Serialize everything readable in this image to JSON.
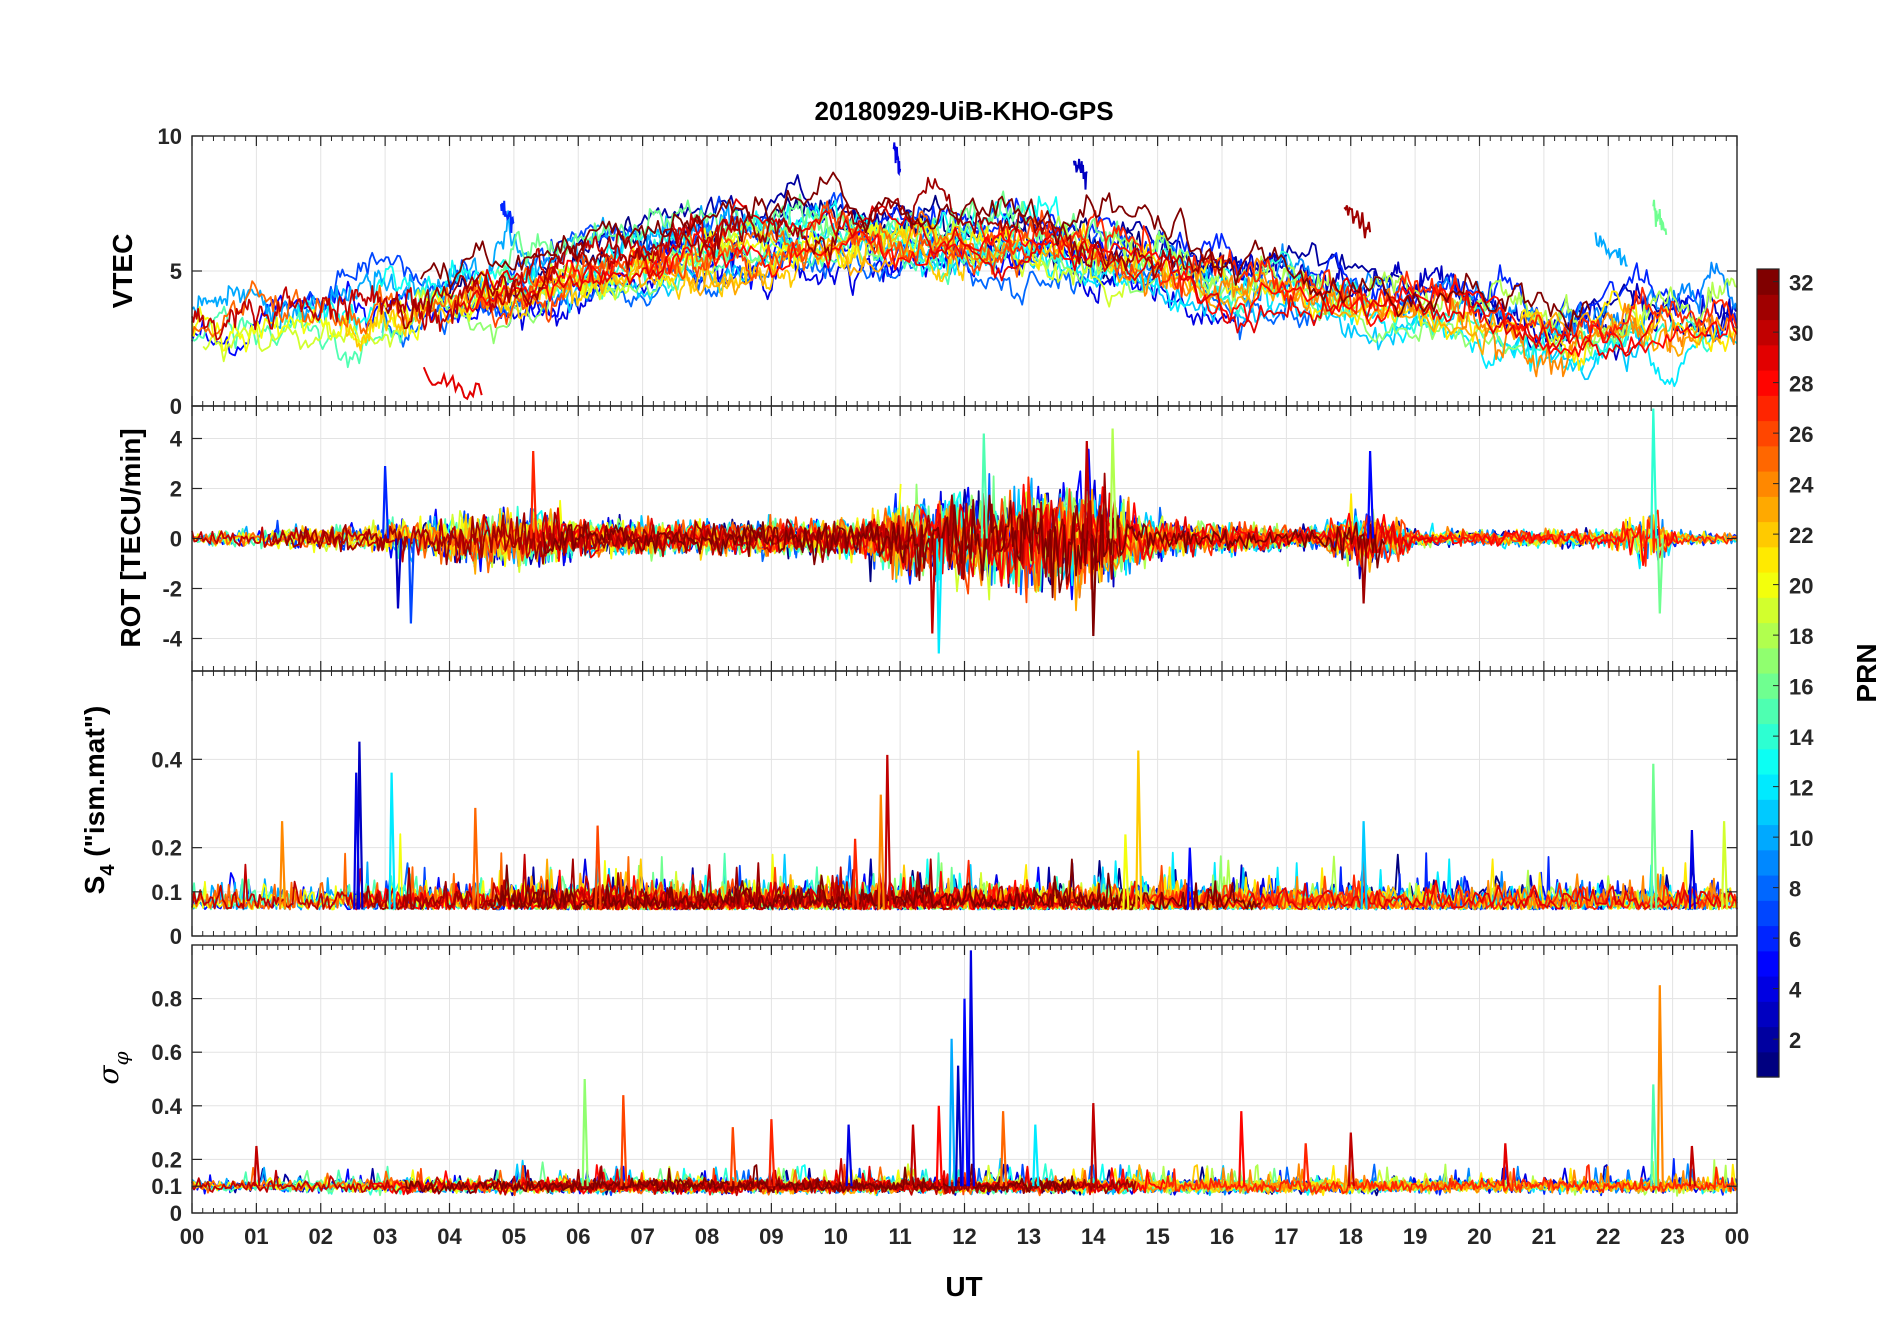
{
  "chart_data": {
    "type": "line",
    "title": "20180929-UiB-KHO-GPS",
    "xlabel": "UT",
    "x_ticks": [
      "00",
      "01",
      "02",
      "03",
      "04",
      "05",
      "06",
      "07",
      "08",
      "09",
      "10",
      "11",
      "12",
      "13",
      "14",
      "15",
      "16",
      "17",
      "18",
      "19",
      "20",
      "21",
      "22",
      "23",
      "00"
    ],
    "xlim_hours": [
      0,
      24
    ],
    "grid": true,
    "colorbar": {
      "label": "PRN",
      "range": [
        1,
        32
      ],
      "ticks": [
        "2",
        "4",
        "6",
        "8",
        "10",
        "12",
        "14",
        "16",
        "18",
        "20",
        "22",
        "24",
        "26",
        "28",
        "30",
        "32"
      ],
      "colormap": "jet",
      "placement": "right"
    },
    "panels": [
      {
        "id": "vtec",
        "ylabel": "VTEC",
        "ylim": [
          0,
          10
        ],
        "yticks": [
          {
            "v": 0,
            "t": "0"
          },
          {
            "v": 5,
            "t": "5"
          },
          {
            "v": 10,
            "t": "10"
          }
        ],
        "baseline_profile": [
          [
            0,
            3.0
          ],
          [
            2,
            3.3
          ],
          [
            4,
            4.0
          ],
          [
            6,
            5.0
          ],
          [
            8,
            6.0
          ],
          [
            10,
            6.5
          ],
          [
            12,
            6.3
          ],
          [
            14,
            5.8
          ],
          [
            16,
            4.6
          ],
          [
            18,
            4.0
          ],
          [
            20,
            3.3
          ],
          [
            21.4,
            2.4
          ],
          [
            22.5,
            3.1
          ],
          [
            24,
            2.9
          ]
        ],
        "spread": 1.0,
        "noise": 0.35,
        "features": [
          {
            "prn": 6,
            "t": [
              4.8,
              5.0
            ],
            "level": 7.5
          },
          {
            "prn": 29,
            "t": [
              3.6,
              4.5
            ],
            "level": 1.2
          },
          {
            "prn": 31,
            "t": [
              17.9,
              18.3
            ],
            "level": 7.4
          },
          {
            "prn": 4,
            "t": [
              10.9,
              11.0
            ],
            "level": 9.5
          },
          {
            "prn": 3,
            "t": [
              13.7,
              13.9
            ],
            "level": 9.2
          },
          {
            "prn": 10,
            "t": [
              21.8,
              22.3
            ],
            "level": 6.2
          },
          {
            "prn": 16,
            "t": [
              22.7,
              22.9
            ],
            "level": 7.3
          }
        ]
      },
      {
        "id": "rot",
        "ylabel": "ROT [TECU/min]",
        "ylim": [
          -5.3,
          5.3
        ],
        "yticks": [
          {
            "v": -4,
            "t": "-4"
          },
          {
            "v": -2,
            "t": "-2"
          },
          {
            "v": 0,
            "t": "0"
          },
          {
            "v": 2,
            "t": "2"
          },
          {
            "v": 4,
            "t": "4"
          }
        ],
        "activity_profile": [
          [
            0,
            0.25
          ],
          [
            3,
            0.5
          ],
          [
            4.5,
            0.9
          ],
          [
            5.5,
            0.9
          ],
          [
            6,
            0.6
          ],
          [
            8,
            0.5
          ],
          [
            10.5,
            0.6
          ],
          [
            11,
            1.2
          ],
          [
            13,
            1.6
          ],
          [
            14,
            1.7
          ],
          [
            15,
            0.6
          ],
          [
            16,
            0.45
          ],
          [
            17.5,
            0.35
          ],
          [
            18,
            0.9
          ],
          [
            18.6,
            0.8
          ],
          [
            19,
            0.25
          ],
          [
            22,
            0.3
          ],
          [
            22.7,
            1.0
          ],
          [
            23,
            0.3
          ],
          [
            24,
            0.15
          ]
        ],
        "spikes": [
          {
            "t": 11.6,
            "v": -4.6,
            "prn": 12
          },
          {
            "t": 11.5,
            "v": -3.8,
            "prn": 30
          },
          {
            "t": 13.9,
            "v": 3.9,
            "prn": 30
          },
          {
            "t": 14.0,
            "v": -3.9,
            "prn": 32
          },
          {
            "t": 14.3,
            "v": 4.4,
            "prn": 18
          },
          {
            "t": 5.3,
            "v": 3.5,
            "prn": 27
          },
          {
            "t": 3.4,
            "v": -3.4,
            "prn": 7
          },
          {
            "t": 12.3,
            "v": 4.2,
            "prn": 15
          },
          {
            "t": 22.7,
            "v": 5.2,
            "prn": 14
          },
          {
            "t": 22.8,
            "v": -3.0,
            "prn": 16
          },
          {
            "t": 18.3,
            "v": 3.5,
            "prn": 5
          },
          {
            "t": 18.2,
            "v": -2.6,
            "prn": 31
          },
          {
            "t": 3.0,
            "v": 2.9,
            "prn": 6
          },
          {
            "t": 3.2,
            "v": -2.8,
            "prn": 3
          }
        ]
      },
      {
        "id": "s4",
        "ylabel": "S",
        "ylabel_sub": "4",
        "ylabel_suffix": " (\"ism.mat\")",
        "ylim": [
          0,
          0.6
        ],
        "yticks": [
          {
            "v": 0,
            "t": "0"
          },
          {
            "v": 0.1,
            "t": "0.1"
          },
          {
            "v": 0.2,
            "t": "0.2"
          },
          {
            "v": 0.4,
            "t": "0.4"
          }
        ],
        "base": 0.06,
        "noise": 0.025,
        "spikes": [
          {
            "t": 2.6,
            "v": 0.44,
            "prn": 3
          },
          {
            "t": 2.55,
            "v": 0.37,
            "prn": 4
          },
          {
            "t": 3.1,
            "v": 0.37,
            "prn": 12
          },
          {
            "t": 4.4,
            "v": 0.29,
            "prn": 25
          },
          {
            "t": 1.4,
            "v": 0.26,
            "prn": 24
          },
          {
            "t": 6.3,
            "v": 0.25,
            "prn": 26
          },
          {
            "t": 10.8,
            "v": 0.41,
            "prn": 30
          },
          {
            "t": 10.7,
            "v": 0.32,
            "prn": 24
          },
          {
            "t": 14.7,
            "v": 0.42,
            "prn": 22
          },
          {
            "t": 14.5,
            "v": 0.23,
            "prn": 20
          },
          {
            "t": 18.2,
            "v": 0.26,
            "prn": 11
          },
          {
            "t": 22.7,
            "v": 0.39,
            "prn": 16
          },
          {
            "t": 23.3,
            "v": 0.24,
            "prn": 4
          },
          {
            "t": 23.8,
            "v": 0.26,
            "prn": 19
          },
          {
            "t": 10.3,
            "v": 0.22,
            "prn": 27
          },
          {
            "t": 15.5,
            "v": 0.2,
            "prn": 5
          }
        ]
      },
      {
        "id": "sigma",
        "ylabel": "σ",
        "ylabel_sub": "φ",
        "ylim": [
          0,
          1.0
        ],
        "yticks": [
          {
            "v": 0,
            "t": "0"
          },
          {
            "v": 0.1,
            "t": "0.1"
          },
          {
            "v": 0.2,
            "t": "0.2"
          },
          {
            "v": 0.4,
            "t": "0.4"
          },
          {
            "v": 0.6,
            "t": "0.6"
          },
          {
            "v": 0.8,
            "t": "0.8"
          }
        ],
        "base": 0.1,
        "noise": 0.012,
        "spikes": [
          {
            "t": 12.1,
            "v": 0.98,
            "prn": 4
          },
          {
            "t": 12.0,
            "v": 0.8,
            "prn": 5
          },
          {
            "t": 11.8,
            "v": 0.65,
            "prn": 10
          },
          {
            "t": 11.9,
            "v": 0.55,
            "prn": 3
          },
          {
            "t": 22.8,
            "v": 0.85,
            "prn": 24
          },
          {
            "t": 22.7,
            "v": 0.48,
            "prn": 15
          },
          {
            "t": 6.1,
            "v": 0.5,
            "prn": 17
          },
          {
            "t": 6.7,
            "v": 0.44,
            "prn": 26
          },
          {
            "t": 14.0,
            "v": 0.41,
            "prn": 30
          },
          {
            "t": 16.3,
            "v": 0.38,
            "prn": 28
          },
          {
            "t": 9.0,
            "v": 0.35,
            "prn": 27
          },
          {
            "t": 10.2,
            "v": 0.33,
            "prn": 4
          },
          {
            "t": 11.2,
            "v": 0.33,
            "prn": 30
          },
          {
            "t": 8.4,
            "v": 0.32,
            "prn": 26
          },
          {
            "t": 18.0,
            "v": 0.3,
            "prn": 30
          },
          {
            "t": 20.4,
            "v": 0.26,
            "prn": 29
          },
          {
            "t": 17.3,
            "v": 0.26,
            "prn": 27
          },
          {
            "t": 23.3,
            "v": 0.25,
            "prn": 30
          },
          {
            "t": 1.0,
            "v": 0.25,
            "prn": 30
          },
          {
            "t": 12.6,
            "v": 0.38,
            "prn": 25
          },
          {
            "t": 13.1,
            "v": 0.33,
            "prn": 12
          },
          {
            "t": 11.6,
            "v": 0.4,
            "prn": 28
          }
        ]
      }
    ]
  }
}
